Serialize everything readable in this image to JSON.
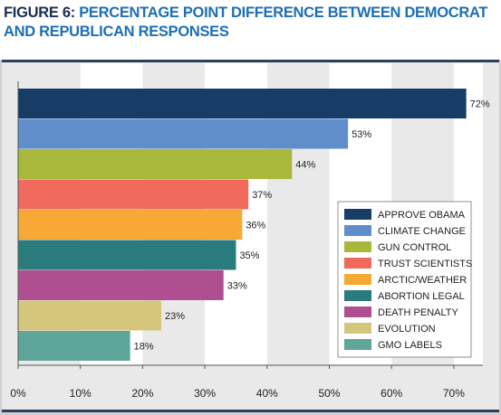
{
  "figure": {
    "prefix": "FIGURE 6: ",
    "title": "PERCENTAGE POINT DIFFERENCE BETWEEN DEMOCRAT AND REPUBLICAN RESPONSES"
  },
  "colors": {
    "title_prefix": "#1a2f55",
    "title_main": "#1c6fb5",
    "panel_background": "#e9e9e9",
    "band_white": "#ffffff",
    "panel_border": "#2d3f5e"
  },
  "chart_data": {
    "type": "bar",
    "orientation": "horizontal",
    "categories": [
      "APPROVE OBAMA",
      "CLIMATE CHANGE",
      "GUN CONTROL",
      "TRUST SCIENTISTS",
      "ARCTIC/WEATHER",
      "ABORTION LEGAL",
      "DEATH PENALTY",
      "EVOLUTION",
      "GMO LABELS"
    ],
    "values": [
      72,
      53,
      44,
      37,
      36,
      35,
      33,
      23,
      18
    ],
    "value_labels": [
      "72%",
      "53%",
      "44%",
      "37%",
      "36%",
      "35%",
      "33%",
      "23%",
      "18%"
    ],
    "bar_colors": [
      "#173c66",
      "#5f8ecb",
      "#a9b83a",
      "#ef6a5c",
      "#f7a935",
      "#2a7b7d",
      "#b04e92",
      "#d4c77c",
      "#5ea69a"
    ],
    "xlim": [
      0,
      75
    ],
    "xticks": [
      0,
      10,
      20,
      30,
      40,
      50,
      60,
      70
    ],
    "xtick_labels": [
      "0%",
      "10%",
      "20%",
      "30%",
      "40%",
      "50%",
      "60%",
      "70%"
    ],
    "legend": {
      "placement": "right",
      "entries": [
        "APPROVE OBAMA",
        "CLIMATE CHANGE",
        "GUN CONTROL",
        "TRUST SCIENTISTS",
        "ARCTIC/WEATHER",
        "ABORTION LEGAL",
        "DEATH PENALTY",
        "EVOLUTION",
        "GMO LABELS"
      ]
    },
    "grid": "alternating vertical bands",
    "xlabel": "",
    "ylabel": ""
  }
}
